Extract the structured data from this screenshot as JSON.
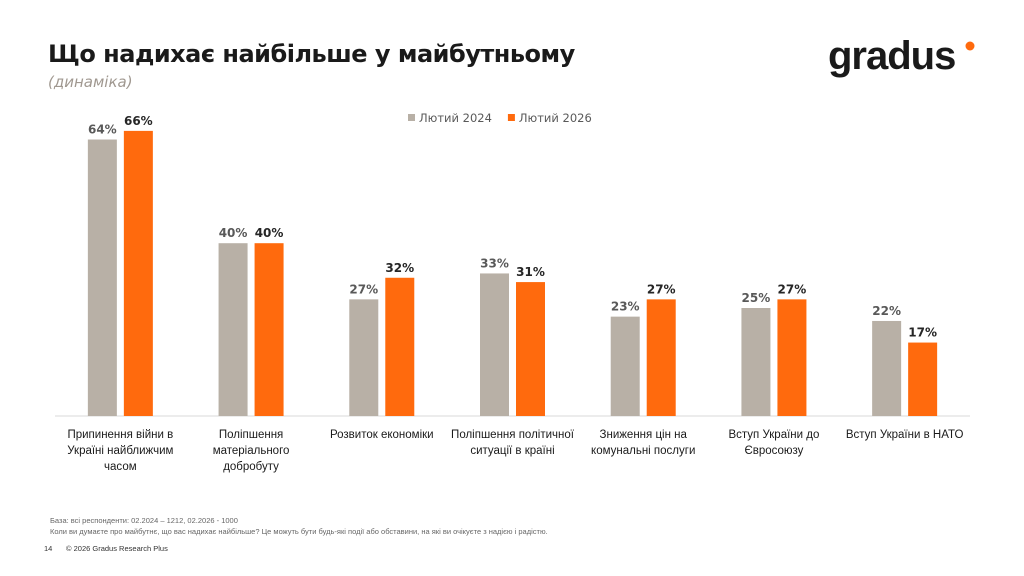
{
  "chart_data": {
    "type": "bar",
    "title": "Що надихає найбільше у майбутньому",
    "subtitle": "(динаміка)",
    "categories": [
      "Припинення війни в Україні найближчим часом",
      "Поліпшення матеріального добробуту",
      "Розвиток економіки",
      "Поліпшення політичної ситуації в країні",
      "Зниження цін на комунальні послуги",
      "Вступ України до Євросоюзу",
      "Вступ України в НАТО"
    ],
    "series": [
      {
        "name": "Лютий 2024",
        "color": "#b8b0a6",
        "values": [
          64,
          40,
          27,
          33,
          23,
          25,
          22
        ],
        "value_labels": [
          "64%",
          "40%",
          "27%",
          "33%",
          "23%",
          "25%",
          "22%"
        ]
      },
      {
        "name": "Лютий 2026",
        "color": "#ff6a0d",
        "values": [
          66,
          40,
          32,
          31,
          27,
          27,
          17
        ],
        "value_labels": [
          "66%",
          "40%",
          "32%",
          "31%",
          "27%",
          "27%",
          "17%"
        ]
      }
    ],
    "legend": "top"
  },
  "logo": "gradus",
  "notes": [
    "База: всі респонденти: 02.2024 – 1212, 02.2026 - 1000",
    "Коли ви думаєте про майбутнє, що вас надихає найбільше? Це можуть бути будь-які події або обставини, на які ви очікуєте з надією і радістю."
  ],
  "footer": {
    "page": "14",
    "copyright": "© 2026 Gradus Research Plus"
  }
}
